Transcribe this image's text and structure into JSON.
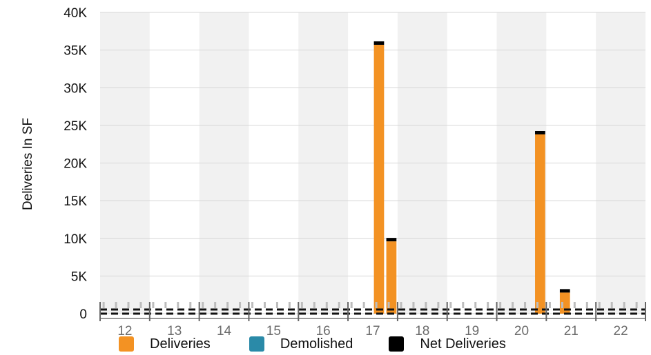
{
  "chart_data": {
    "type": "bar",
    "ylabel": "Deliveries In SF",
    "xlabel": "",
    "ylim": [
      0,
      40000
    ],
    "yticks": [
      0,
      5000,
      10000,
      15000,
      20000,
      25000,
      30000,
      35000,
      40000
    ],
    "ytick_labels": [
      "0",
      "5K",
      "10K",
      "15K",
      "20K",
      "25K",
      "30K",
      "35K",
      "40K"
    ],
    "years": [
      "12",
      "13",
      "14",
      "15",
      "16",
      "17",
      "18",
      "19",
      "20",
      "21",
      "22"
    ],
    "quarters_per_year": 4,
    "x_axis": "quarters grouped by year",
    "grid": "horizontal",
    "alternating_year_bands": true,
    "legend_position": "bottom",
    "series": [
      {
        "name": "Deliveries",
        "color": "#f39223",
        "points": [
          {
            "year": "17",
            "quarter": 3,
            "value": 35700
          },
          {
            "year": "17",
            "quarter": 4,
            "value": 9600
          },
          {
            "year": "20",
            "quarter": 4,
            "value": 23800
          },
          {
            "year": "21",
            "quarter": 2,
            "value": 2800
          }
        ]
      },
      {
        "name": "Demolished",
        "color": "#2a8aa8",
        "points": []
      },
      {
        "name": "Net Deliveries",
        "color": "#000000",
        "points": [
          {
            "year": "17",
            "quarter": 3,
            "value": 35700
          },
          {
            "year": "17",
            "quarter": 4,
            "value": 9600
          },
          {
            "year": "20",
            "quarter": 4,
            "value": 23800
          },
          {
            "year": "21",
            "quarter": 2,
            "value": 2800
          }
        ]
      }
    ]
  },
  "legend": [
    {
      "label": "Deliveries",
      "color": "#f39223"
    },
    {
      "label": "Demolished",
      "color": "#2a8aa8"
    },
    {
      "label": "Net Deliveries",
      "color": "#000000"
    }
  ]
}
